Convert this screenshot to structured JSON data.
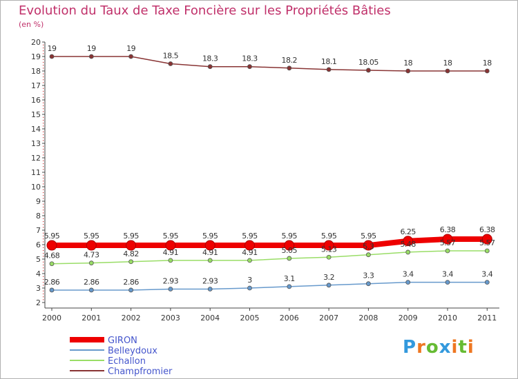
{
  "chart_data": {
    "type": "line",
    "title": "Evolution du Taux de Taxe Foncière sur les Propriétés Bâties",
    "subtitle": "(en %)",
    "xlabel": "",
    "ylabel": "",
    "ylim": [
      2,
      20
    ],
    "yticks": [
      2,
      3,
      4,
      5,
      6,
      7,
      8,
      9,
      10,
      11,
      12,
      13,
      14,
      15,
      16,
      17,
      18,
      19,
      20
    ],
    "categories": [
      "2000",
      "2001",
      "2002",
      "2003",
      "2004",
      "2005",
      "2006",
      "2007",
      "2008",
      "2009",
      "2010",
      "2011"
    ],
    "grid": false,
    "legend_position": "bottom-left",
    "series": [
      {
        "name": "GIRON",
        "color": "#ee0000",
        "values": [
          5.95,
          5.95,
          5.95,
          5.95,
          5.95,
          5.95,
          5.95,
          5.95,
          5.95,
          6.25,
          6.38,
          6.38
        ],
        "labels": [
          "5.95",
          "5.95",
          "5.95",
          "5.95",
          "5.95",
          "5.95",
          "5.95",
          "5.95",
          "5.95",
          "6.25",
          "6.38",
          "6.38"
        ]
      },
      {
        "name": "Belleydoux",
        "color": "#6699cc",
        "values": [
          2.86,
          2.86,
          2.86,
          2.93,
          2.93,
          3,
          3.1,
          3.2,
          3.3,
          3.4,
          3.4,
          3.4
        ],
        "labels": [
          "2.86",
          "2.86",
          "2.86",
          "2.93",
          "2.93",
          "3",
          "3.1",
          "3.2",
          "3.3",
          "3.4",
          "3.4",
          "3.4"
        ]
      },
      {
        "name": "Echallon",
        "color": "#99dd66",
        "values": [
          4.68,
          4.73,
          4.82,
          4.91,
          4.91,
          4.91,
          5.05,
          5.13,
          5.3,
          5.48,
          5.57,
          5.57
        ],
        "labels": [
          "4.68",
          "4.73",
          "4.82",
          "4.91",
          "4.91",
          "4.91",
          "5.05",
          "5.13",
          "5.3",
          "5.48",
          "5.57",
          "5.57"
        ]
      },
      {
        "name": "Champfromier",
        "color": "#883333",
        "values": [
          19,
          19,
          19,
          18.5,
          18.3,
          18.3,
          18.2,
          18.1,
          18.05,
          18,
          18,
          18
        ],
        "labels": [
          "19",
          "19",
          "19",
          "18.5",
          "18.3",
          "18.3",
          "18.2",
          "18.1",
          "18.05",
          "18",
          "18",
          "18"
        ]
      }
    ]
  },
  "logo": {
    "letters": [
      "P",
      "r",
      "o",
      "x",
      "i",
      "t",
      "i"
    ],
    "colors": [
      "#3399dd",
      "#ee7722",
      "#66bb33",
      "#3399dd",
      "#ee7722",
      "#66bb33",
      "#ee7722"
    ]
  }
}
